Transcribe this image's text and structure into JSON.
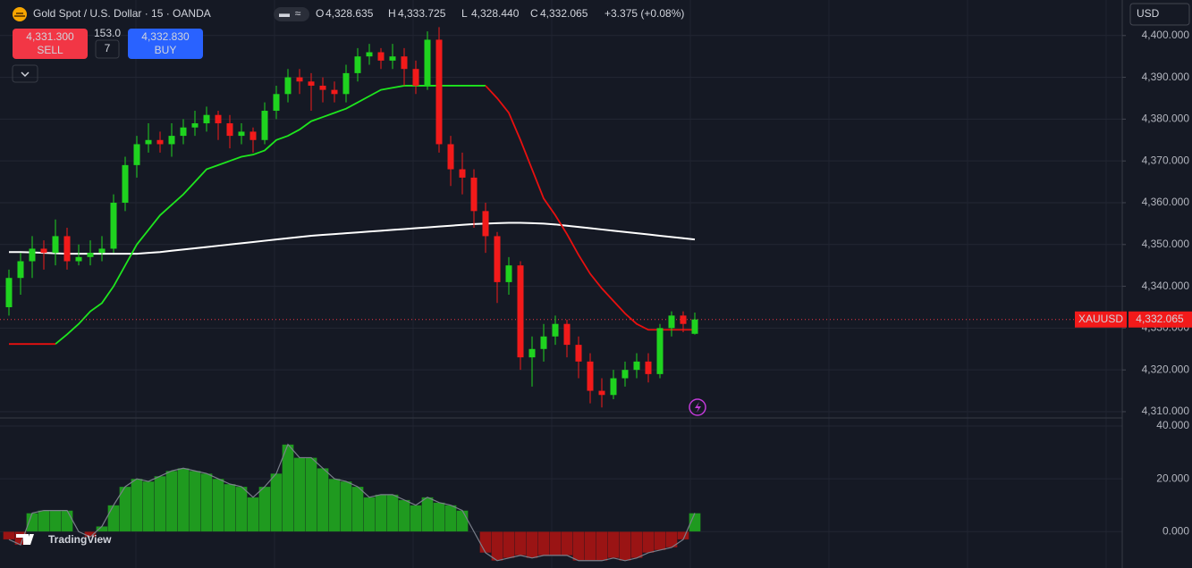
{
  "ui": {
    "title": "Gold Spot / U.S. Dollar · 15 · OANDA",
    "ohlc": [
      {
        "key": "O",
        "value": "4,328.635"
      },
      {
        "key": "H",
        "value": "4,333.725"
      },
      {
        "key": "L",
        "value": "4,328.440"
      },
      {
        "key": "C",
        "value": "4,332.065"
      }
    ],
    "change": "+3.375 (+0.08%)",
    "sell": {
      "price": "4,331.300",
      "label": "SELL"
    },
    "spread": {
      "top": "153.0",
      "bottom": "7"
    },
    "buy": {
      "price": "4,332.830",
      "label": "BUY"
    },
    "currency": "USD",
    "symbol": "XAUUSD",
    "logo": "TradingView"
  },
  "chart_data": {
    "type": "candlestick",
    "up_color": "#1fd31f",
    "down_color": "#f21a1a",
    "candles": [
      [
        4335,
        4344,
        4333,
        4342
      ],
      [
        4342,
        4348,
        4338,
        4346
      ],
      [
        4346,
        4352,
        4342,
        4349
      ],
      [
        4349,
        4351,
        4344,
        4348
      ],
      [
        4348,
        4356,
        4345,
        4352
      ],
      [
        4352,
        4354,
        4344,
        4346
      ],
      [
        4346,
        4350,
        4345,
        4347
      ],
      [
        4347,
        4351,
        4345,
        4348
      ],
      [
        4348,
        4352,
        4346,
        4349
      ],
      [
        4349,
        4362,
        4348,
        4360
      ],
      [
        4360,
        4371,
        4358,
        4369
      ],
      [
        4369,
        4376,
        4366,
        4374
      ],
      [
        4374,
        4379,
        4372,
        4375
      ],
      [
        4375,
        4377,
        4372,
        4374
      ],
      [
        4374,
        4379,
        4371,
        4376
      ],
      [
        4376,
        4380,
        4374,
        4378
      ],
      [
        4378,
        4382,
        4376,
        4379
      ],
      [
        4379,
        4383,
        4377,
        4381
      ],
      [
        4381,
        4382,
        4375,
        4379
      ],
      [
        4379,
        4381,
        4373,
        4376
      ],
      [
        4376,
        4379,
        4374,
        4377
      ],
      [
        4377,
        4378,
        4372,
        4375
      ],
      [
        4375,
        4384,
        4374,
        4382
      ],
      [
        4382,
        4388,
        4380,
        4386
      ],
      [
        4386,
        4392,
        4384,
        4390
      ],
      [
        4390,
        4392,
        4386,
        4389
      ],
      [
        4389,
        4391,
        4382,
        4388
      ],
      [
        4388,
        4390,
        4384,
        4387
      ],
      [
        4387,
        4389,
        4384,
        4386
      ],
      [
        4386,
        4393,
        4384,
        4391
      ],
      [
        4391,
        4397,
        4389,
        4395
      ],
      [
        4395,
        4398,
        4393,
        4396
      ],
      [
        4396,
        4397,
        4392,
        4394
      ],
      [
        4394,
        4398,
        4392,
        4395
      ],
      [
        4395,
        4397,
        4388,
        4392
      ],
      [
        4392,
        4394,
        4386,
        4388
      ],
      [
        4388,
        4401,
        4387,
        4399
      ],
      [
        4399,
        4402,
        4372,
        4374
      ],
      [
        4374,
        4376,
        4364,
        4368
      ],
      [
        4368,
        4372,
        4362,
        4366
      ],
      [
        4366,
        4368,
        4354,
        4358
      ],
      [
        4358,
        4360,
        4348,
        4352
      ],
      [
        4352,
        4353,
        4336,
        4341
      ],
      [
        4341,
        4347,
        4338,
        4345
      ],
      [
        4345,
        4346,
        4320,
        4323
      ],
      [
        4323,
        4328,
        4316,
        4325
      ],
      [
        4325,
        4331,
        4322,
        4328
      ],
      [
        4328,
        4333,
        4326,
        4331
      ],
      [
        4331,
        4332,
        4323,
        4326
      ],
      [
        4326,
        4328,
        4318,
        4322
      ],
      [
        4322,
        4324,
        4312,
        4315
      ],
      [
        4315,
        4318,
        4311,
        4314
      ],
      [
        4314,
        4320,
        4313,
        4318
      ],
      [
        4318,
        4322,
        4316,
        4320
      ],
      [
        4320,
        4324,
        4318,
        4322
      ],
      [
        4322,
        4324,
        4317,
        4319
      ],
      [
        4319,
        4331,
        4318,
        4330
      ],
      [
        4330,
        4334,
        4328,
        4333
      ],
      [
        4333,
        4334,
        4329,
        4331
      ],
      [
        4328.635,
        4333.725,
        4328.44,
        4332.065
      ]
    ],
    "trend_up": {
      "color": "#1ee61e",
      "values": [
        null,
        null,
        null,
        null,
        4326.2,
        4328.5,
        4331,
        4334,
        4336,
        4340,
        4345,
        4350,
        4353.5,
        4357,
        4359.5,
        4362,
        4365,
        4368,
        4369,
        4370,
        4371,
        4371.5,
        4372.5,
        4375,
        4376,
        4377.5,
        4379.5,
        4380.5,
        4381.5,
        4382.5,
        4384,
        4385.5,
        4387,
        4387.5,
        4388,
        4388,
        4388,
        4388,
        4388,
        4388,
        4388,
        4388,
        null,
        null,
        null,
        null,
        null,
        null,
        null,
        null,
        null,
        null,
        null,
        null,
        null,
        null,
        null,
        null,
        null,
        null
      ]
    },
    "trend_down": {
      "color": "#e8100f",
      "values": [
        4326.2,
        4326.2,
        4326.2,
        4326.2,
        4326.2,
        null,
        null,
        null,
        null,
        null,
        null,
        null,
        null,
        null,
        null,
        null,
        null,
        null,
        null,
        null,
        null,
        null,
        null,
        null,
        null,
        null,
        null,
        null,
        null,
        null,
        null,
        null,
        null,
        null,
        null,
        null,
        null,
        null,
        null,
        null,
        null,
        4388,
        4385,
        4381.5,
        4375,
        4368,
        4361,
        4357,
        4352.5,
        4347.5,
        4343,
        4339.5,
        4336.5,
        4333.5,
        4331,
        4329.6,
        4329.6,
        4329.6,
        4329.6,
        4329.6
      ]
    },
    "ma": {
      "color": "#ffffff",
      "values": [
        4348.2,
        4348.2,
        4348.1,
        4348,
        4347.9,
        4347.8,
        4347.8,
        4347.8,
        4347.8,
        4347.8,
        4347.8,
        4347.8,
        4348,
        4348.2,
        4348.5,
        4348.8,
        4349.1,
        4349.4,
        4349.7,
        4350,
        4350.3,
        4350.6,
        4350.9,
        4351.2,
        4351.5,
        4351.8,
        4352.1,
        4352.3,
        4352.5,
        4352.7,
        4352.9,
        4353.1,
        4353.3,
        4353.5,
        4353.7,
        4353.9,
        4354.1,
        4354.3,
        4354.5,
        4354.7,
        4354.9,
        4355,
        4355.1,
        4355.2,
        4355.2,
        4355.1,
        4355,
        4354.8,
        4354.5,
        4354.2,
        4353.9,
        4353.6,
        4353.3,
        4353,
        4352.7,
        4352.4,
        4352.1,
        4351.8,
        4351.5,
        4351.2
      ]
    },
    "last_price": {
      "value": 4332.065,
      "label": "4,332.065"
    },
    "ylim": [
      4308.5,
      4408.5
    ],
    "yticks": [
      {
        "value": 4310,
        "label": "4,310.000"
      },
      {
        "value": 4320,
        "label": "4,320.000"
      },
      {
        "value": 4330,
        "label": "4,330.000"
      },
      {
        "value": 4340,
        "label": "4,340.000"
      },
      {
        "value": 4350,
        "label": "4,350.000"
      },
      {
        "value": 4360,
        "label": "4,360.000"
      },
      {
        "value": 4370,
        "label": "4,370.000"
      },
      {
        "value": 4380,
        "label": "4,380.000"
      },
      {
        "value": 4390,
        "label": "4,390.000"
      },
      {
        "value": 4400,
        "label": "4,400.000"
      }
    ],
    "oscillator": {
      "pos_color": "#1f9a1f",
      "neg_color": "#9a1414",
      "values": [
        -3,
        -5,
        7,
        8,
        8,
        8,
        0,
        -2,
        2,
        10,
        17,
        20,
        19,
        21,
        23,
        24,
        23,
        22,
        20,
        18,
        17,
        13,
        17,
        22,
        33,
        28,
        28,
        24,
        20,
        19,
        17,
        13,
        14,
        14,
        12,
        10,
        13,
        11,
        10,
        8,
        0,
        -8,
        -11,
        -10,
        -9,
        -10,
        -9,
        -9,
        -9,
        -11,
        -11,
        -11,
        -10,
        -11,
        -10,
        -8,
        -7,
        -6,
        -3,
        7
      ],
      "ylim": [
        -13.78,
        42.69
      ],
      "yticks": [
        {
          "value": 0,
          "label": "0.000"
        },
        {
          "value": 20,
          "label": "20.000"
        },
        {
          "value": 40,
          "label": "40.000"
        }
      ]
    },
    "grid": true
  }
}
